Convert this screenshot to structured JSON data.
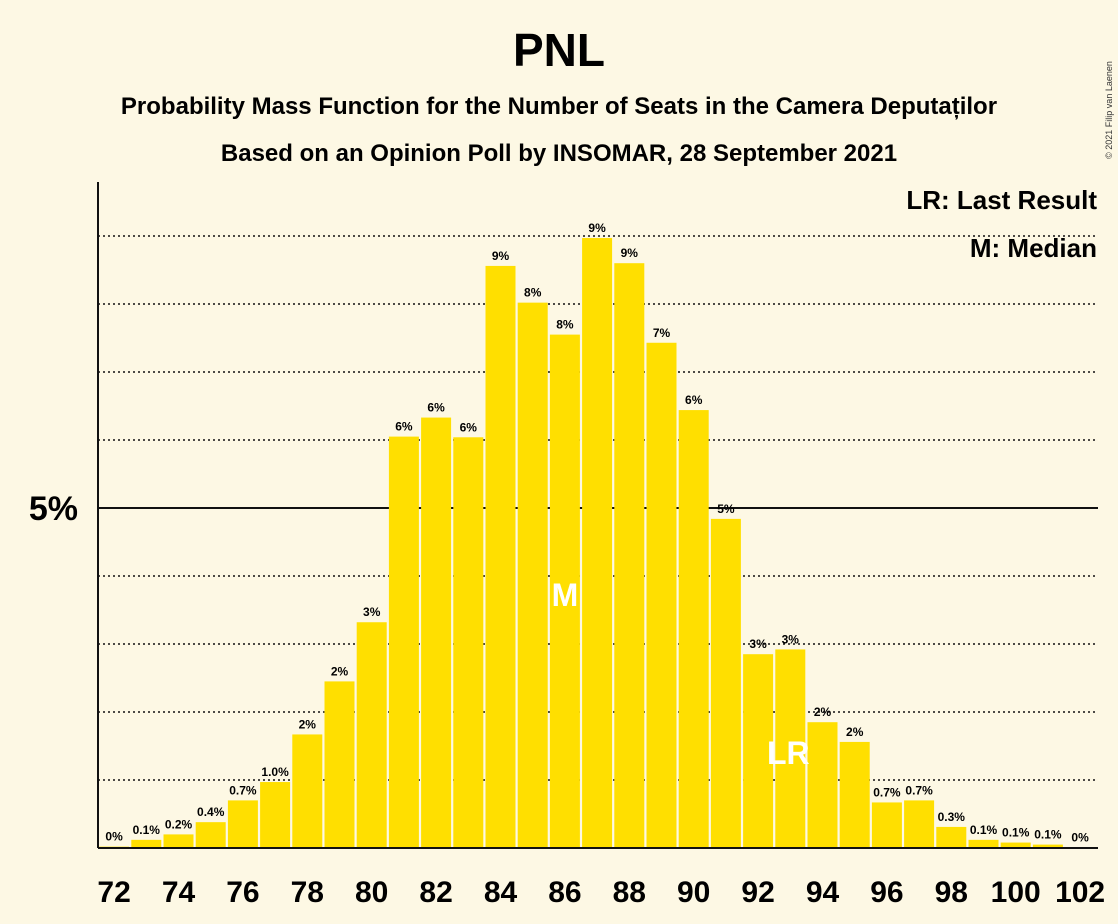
{
  "title": "PNL",
  "subtitle1": "Probability Mass Function for the Number of Seats in the Camera Deputaților",
  "subtitle2": "Based on an Opinion Poll by INSOMAR, 28 September 2021",
  "legend": {
    "lr": "LR: Last Result",
    "m": "M: Median"
  },
  "copyright": "© 2021 Filip van Laenen",
  "colors": {
    "bar": "#ffdf00",
    "background": "#fdf8e4"
  },
  "chart_data": {
    "type": "bar",
    "x": [
      72,
      73,
      74,
      75,
      76,
      77,
      78,
      79,
      80,
      81,
      82,
      83,
      84,
      85,
      86,
      87,
      88,
      89,
      90,
      91,
      92,
      93,
      94,
      95,
      96,
      97,
      98,
      99,
      100,
      101,
      102
    ],
    "values": [
      0.02,
      0.12,
      0.2,
      0.38,
      0.7,
      0.97,
      1.67,
      2.45,
      3.32,
      6.05,
      6.33,
      6.04,
      8.56,
      8.02,
      7.55,
      8.97,
      8.6,
      7.43,
      6.44,
      4.84,
      2.85,
      2.92,
      1.85,
      1.56,
      0.67,
      0.7,
      0.31,
      0.12,
      0.08,
      0.05,
      0.01
    ],
    "labels": [
      "0%",
      "0.1%",
      "0.2%",
      "0.4%",
      "0.7%",
      "1.0%",
      "2%",
      "2%",
      "3%",
      "6%",
      "6%",
      "6%",
      "9%",
      "8%",
      "8%",
      "9%",
      "9%",
      "7%",
      "6%",
      "5%",
      "3%",
      "3%",
      "2%",
      "2%",
      "0.7%",
      "0.7%",
      "0.3%",
      "0.1%",
      "0.1%",
      "0.1%",
      "0%"
    ],
    "xticks": [
      "72",
      "74",
      "76",
      "78",
      "80",
      "82",
      "84",
      "86",
      "88",
      "90",
      "92",
      "94",
      "96",
      "98",
      "100",
      "102"
    ],
    "yticks": [
      {
        "value": 5,
        "label": "5%"
      }
    ],
    "ylim": [
      0,
      9.8
    ],
    "grid": "dotted horizontal every 1%, solid at 5%",
    "median": {
      "x": 86,
      "label": "M"
    },
    "last_result": {
      "x": 93,
      "label": "LR"
    }
  }
}
